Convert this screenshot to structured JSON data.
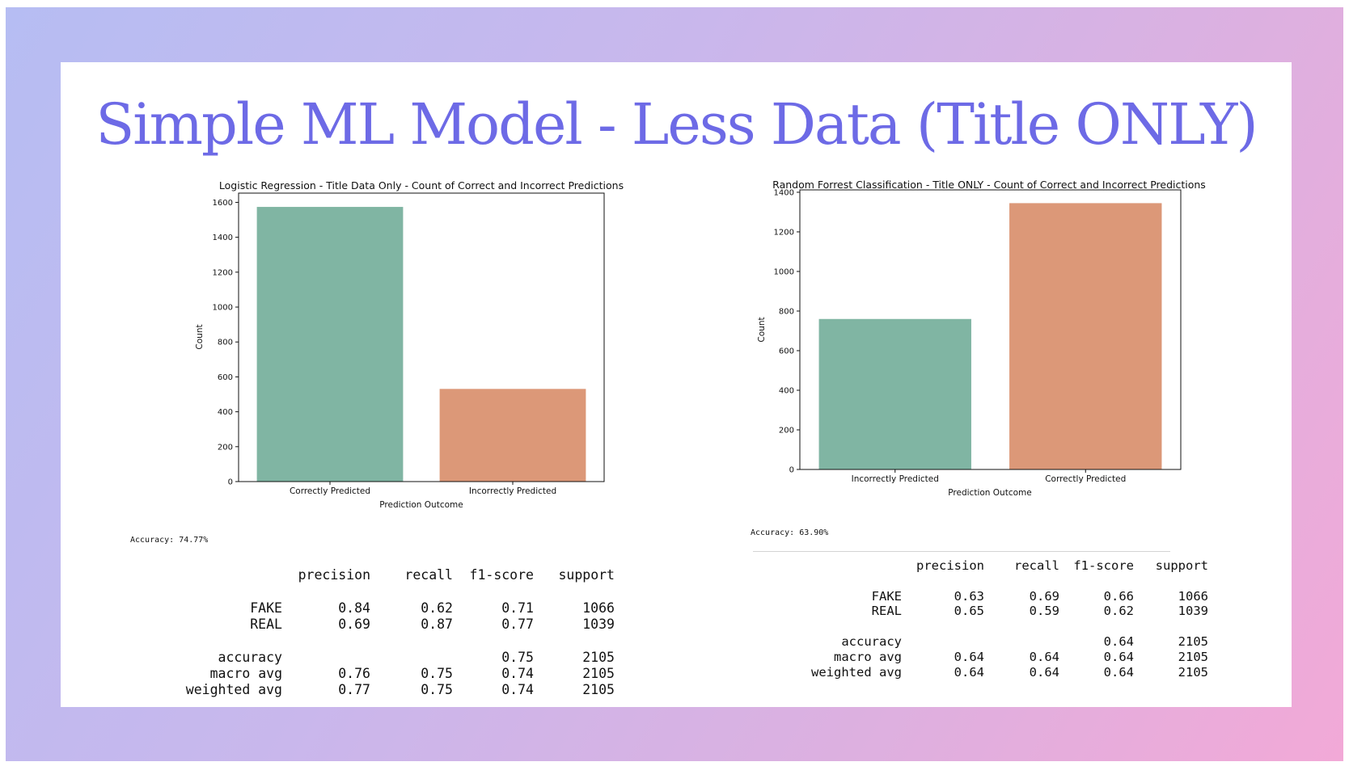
{
  "slide_title": "Simple ML Model - Less Data (Title ONLY)",
  "colors": {
    "title": "#6d6ae6",
    "bar_green": "#80b5a3",
    "bar_orange": "#dc9878"
  },
  "chart_data": [
    {
      "type": "bar",
      "title": "Logistic Regression - Title Data Only - Count of Correct and Incorrect Predictions",
      "xlabel": "Prediction Outcome",
      "ylabel": "Count",
      "categories": [
        "Correctly Predicted",
        "Incorrectly Predicted"
      ],
      "values": [
        1574,
        531
      ],
      "bar_colors": [
        "#80b5a3",
        "#dc9878"
      ],
      "yticks": [
        0,
        200,
        400,
        600,
        800,
        1000,
        1200,
        1400,
        1600
      ],
      "ylim": [
        0,
        1653
      ],
      "grid": false
    },
    {
      "type": "bar",
      "title": "Random Forrest Classification - Title ONLY - Count of Correct and Incorrect Predictions",
      "xlabel": "Prediction Outcome",
      "ylabel": "Count",
      "categories": [
        "Incorrectly Predicted",
        "Correctly Predicted"
      ],
      "values": [
        760,
        1345
      ],
      "bar_colors": [
        "#80b5a3",
        "#dc9878"
      ],
      "yticks": [
        0,
        200,
        400,
        600,
        800,
        1000,
        1200,
        1400
      ],
      "ylim": [
        0,
        1412
      ],
      "grid": false
    }
  ],
  "left_report": {
    "accuracy_text": "Accuracy: 74.77%",
    "headers": [
      "precision",
      "recall",
      "f1-score",
      "support"
    ],
    "rows": [
      {
        "label": "FAKE",
        "values": [
          "0.84",
          "0.62",
          "0.71",
          "1066"
        ]
      },
      {
        "label": "REAL",
        "values": [
          "0.69",
          "0.87",
          "0.77",
          "1039"
        ]
      }
    ],
    "summary": [
      {
        "label": "accuracy",
        "values": [
          "",
          "",
          "0.75",
          "2105"
        ]
      },
      {
        "label": "macro avg",
        "values": [
          "0.76",
          "0.75",
          "0.74",
          "2105"
        ]
      },
      {
        "label": "weighted avg",
        "values": [
          "0.77",
          "0.75",
          "0.74",
          "2105"
        ]
      }
    ]
  },
  "right_report": {
    "accuracy_text": "Accuracy: 63.90%",
    "headers": [
      "precision",
      "recall",
      "f1-score",
      "support"
    ],
    "rows": [
      {
        "label": "FAKE",
        "values": [
          "0.63",
          "0.69",
          "0.66",
          "1066"
        ]
      },
      {
        "label": "REAL",
        "values": [
          "0.65",
          "0.59",
          "0.62",
          "1039"
        ]
      }
    ],
    "summary": [
      {
        "label": "accuracy",
        "values": [
          "",
          "",
          "0.64",
          "2105"
        ]
      },
      {
        "label": "macro avg",
        "values": [
          "0.64",
          "0.64",
          "0.64",
          "2105"
        ]
      },
      {
        "label": "weighted avg",
        "values": [
          "0.64",
          "0.64",
          "0.64",
          "2105"
        ]
      }
    ]
  }
}
